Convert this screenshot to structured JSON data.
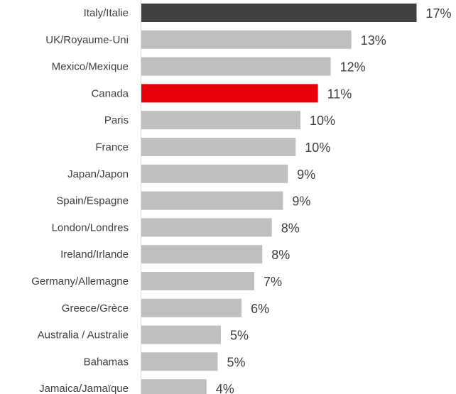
{
  "chart_data": {
    "type": "bar",
    "orientation": "horizontal",
    "title": "",
    "xlabel": "",
    "ylabel": "",
    "grid": false,
    "categories": [
      "Italy/Italie",
      "UK/Royaume-Uni",
      "Mexico/Mexique",
      "Canada",
      "Paris",
      "France",
      "Japan/Japon",
      "Spain/Espagne",
      "London/Londres",
      "Ireland/Irlande",
      "Germany/Allemagne",
      "Greece/Grèce",
      "Australia / Australie",
      "Bahamas",
      "Jamaica/Jamaïque"
    ],
    "values": [
      17,
      13,
      12,
      11,
      10,
      10,
      9,
      9,
      8,
      8,
      7,
      6,
      5,
      5,
      4
    ],
    "value_labels": [
      "17%",
      "13%",
      "12%",
      "11%",
      "10%",
      "10%",
      "9%",
      "9%",
      "8%",
      "8%",
      "7%",
      "6%",
      "5%",
      "5%",
      "4%"
    ],
    "bar_values_precise": [
      17.3,
      13.2,
      11.9,
      11.1,
      10.0,
      9.7,
      9.2,
      8.9,
      8.2,
      7.6,
      7.1,
      6.3,
      5.0,
      4.8,
      4.1
    ],
    "unit": "%",
    "colors": {
      "default": "#bfbfbf",
      "highlights": {
        "Italy/Italie": "#404040",
        "Canada": "#e8000b"
      },
      "label_text": "#404040",
      "axis_line": "#d9d9d9"
    }
  }
}
